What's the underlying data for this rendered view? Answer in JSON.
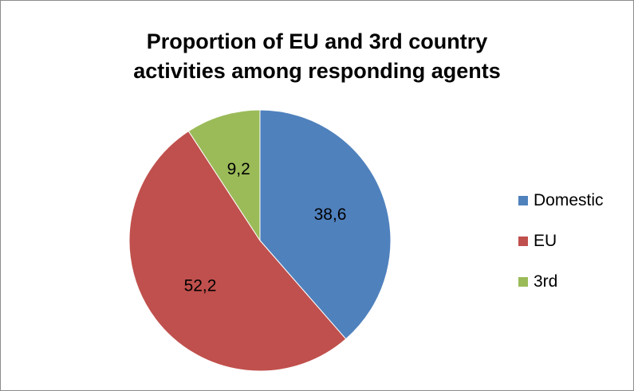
{
  "chart_data": {
    "type": "pie",
    "title_lines": [
      "Proportion of EU and 3rd country",
      "activities among responding agents"
    ],
    "categories": [
      "Domestic",
      "EU",
      "3rd"
    ],
    "values": [
      38.6,
      52.2,
      9.2
    ],
    "value_labels": [
      "38,6",
      "52,2",
      "9,2"
    ],
    "colors": [
      "#4f81bd",
      "#c0504d",
      "#9bbb59"
    ],
    "legend_position": "right"
  }
}
